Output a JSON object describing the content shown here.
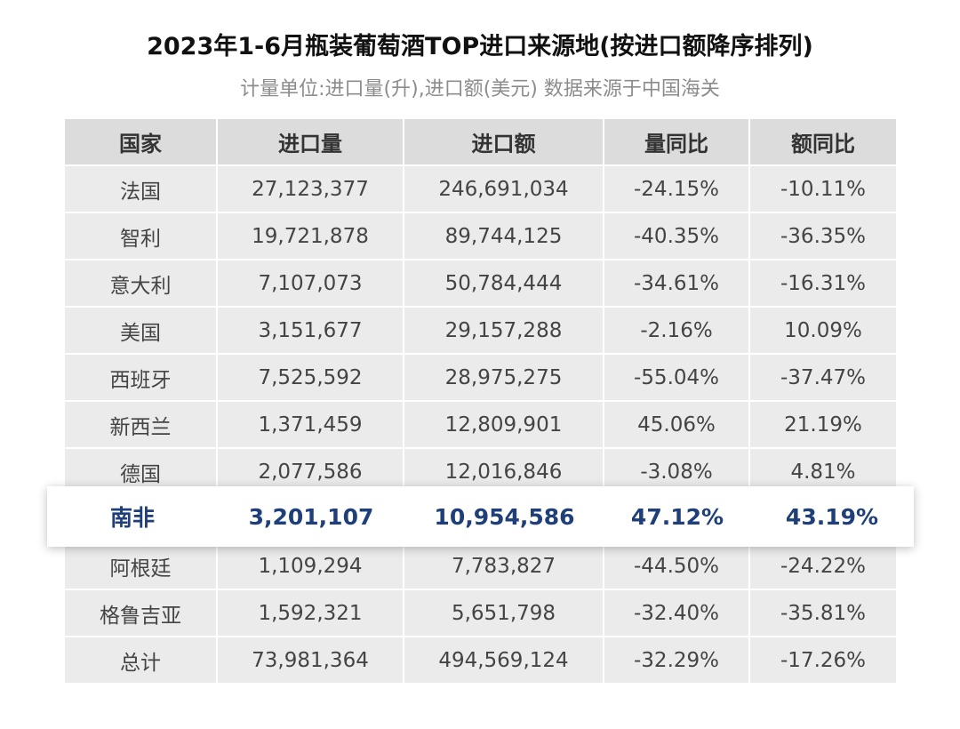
{
  "title": "2023年1-6月瓶装葡萄酒TOP进口来源地(按进口额降序排列)",
  "subtitle": "计量单位:进口量(升),进口额(美元) 数据来源于中国海关",
  "headers": [
    "国家",
    "进口量",
    "进口额",
    "量同比",
    "额同比"
  ],
  "rows": [
    [
      "法国",
      "27,123,377",
      "246,691,034",
      "-24.15%",
      "-10.11%"
    ],
    [
      "智利",
      "19,721,878",
      "89,744,125",
      "-40.35%",
      "-36.35%"
    ],
    [
      "意大利",
      "7,107,073",
      "50,784,444",
      "-34.61%",
      "-16.31%"
    ],
    [
      "美国",
      "3,151,677",
      "29,157,288",
      "-2.16%",
      "10.09%"
    ],
    [
      "西班牙",
      "7,525,592",
      "28,975,275",
      "-55.04%",
      "-37.47%"
    ],
    [
      "新西兰",
      "1,371,459",
      "12,809,901",
      "45.06%",
      "21.19%"
    ],
    [
      "德国",
      "2,077,586",
      "12,016,846",
      "-3.08%",
      "4.81%"
    ]
  ],
  "highlight_row": [
    "南非",
    "3,201,107",
    "10,954,586",
    "47.12%",
    "43.19%"
  ],
  "rows_after": [
    [
      "阿根廷",
      "1,109,294",
      "7,783,827",
      "-44.50%",
      "-24.22%"
    ],
    [
      "格鲁吉亚",
      "1,592,321",
      "5,651,798",
      "-32.40%",
      "-35.81%"
    ],
    [
      "总计",
      "73,981,364",
      "494,569,124",
      "-32.29%",
      "-17.26%"
    ]
  ],
  "colors": {
    "highlight_text": "#1f3f7a",
    "cell_bg": "#ebebeb",
    "header_bg": "#dcdcdc"
  }
}
